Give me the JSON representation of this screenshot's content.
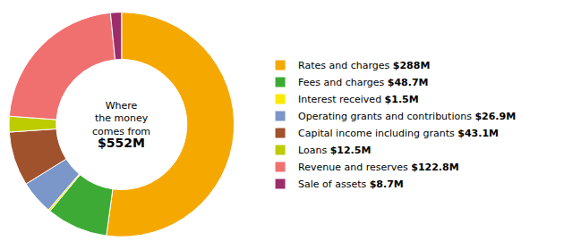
{
  "chart_data": {
    "type": "donut",
    "title": [
      "Where",
      "the money",
      "comes from"
    ],
    "subtitle": "$552M",
    "categories": [
      "Rates and charges",
      "Fees and charges",
      "Interest received",
      "Operating grants and contributions",
      "Capital income including grants",
      "Loans",
      "Revenue and reserves",
      "Sale of assets"
    ],
    "values": [
      288.0,
      48.7,
      1.5,
      26.9,
      43.1,
      12.5,
      122.8,
      8.7
    ],
    "value_labels": [
      "$288M",
      "$48.7M",
      "$1.5M",
      "$26.9M",
      "$43.1M",
      "$12.5M",
      "$122.8M",
      "$8.7M"
    ],
    "colors": [
      "#F5A800",
      "#3DAA35",
      "#FFE800",
      "#7B96C8",
      "#A0522D",
      "#BDCC00",
      "#F07070",
      "#9B2D6B"
    ],
    "legend": "right"
  }
}
